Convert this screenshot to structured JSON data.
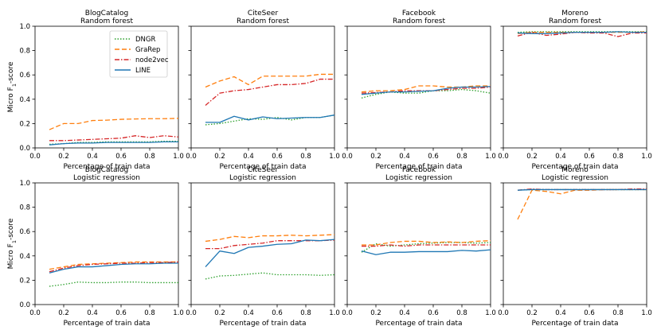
{
  "chart_data": {
    "type": "line",
    "ylabel": "Micro F1-score",
    "xlabel": "Percentage of train data",
    "xlim": [
      0.0,
      1.0
    ],
    "ylim": [
      0.0,
      1.0
    ],
    "xticks": [
      "0.0",
      "0.2",
      "0.4",
      "0.6",
      "0.8",
      "1.0"
    ],
    "yticks": [
      "0.0",
      "0.2",
      "0.4",
      "0.6",
      "0.8",
      "1.0"
    ],
    "x": [
      0.1,
      0.2,
      0.3,
      0.4,
      0.5,
      0.6,
      0.7,
      0.8,
      0.9,
      1.0
    ],
    "series_styles": [
      {
        "name": "DNGR",
        "color": "#2ca02c",
        "dash": "dotted"
      },
      {
        "name": "GraRep",
        "color": "#ff7f0e",
        "dash": "dashed"
      },
      {
        "name": "node2vec",
        "color": "#d62728",
        "dash": "dashdot"
      },
      {
        "name": "LINE",
        "color": "#1f77b4",
        "dash": "solid"
      }
    ],
    "legend": {
      "location": "top-right of first panel",
      "entries": [
        "DNGR",
        "GraRep",
        "node2vec",
        "LINE"
      ]
    },
    "panels": [
      {
        "dataset": "BlogCatalog",
        "classifier": "Random forest",
        "series": {
          "DNGR": [
            0.03,
            0.035,
            0.045,
            0.045,
            0.05,
            0.05,
            0.05,
            0.05,
            0.055,
            0.055
          ],
          "GraRep": [
            0.15,
            0.2,
            0.2,
            0.225,
            0.228,
            0.235,
            0.238,
            0.24,
            0.24,
            0.243
          ],
          "node2vec": [
            0.06,
            0.06,
            0.065,
            0.07,
            0.075,
            0.08,
            0.1,
            0.085,
            0.1,
            0.09
          ],
          "LINE": [
            0.025,
            0.035,
            0.04,
            0.04,
            0.045,
            0.045,
            0.045,
            0.045,
            0.05,
            0.05
          ]
        }
      },
      {
        "dataset": "CiteSeer",
        "classifier": "Random forest",
        "series": {
          "DNGR": [
            0.19,
            0.2,
            0.22,
            0.24,
            0.235,
            0.25,
            0.23,
            0.25,
            0.25,
            0.27
          ],
          "GraRep": [
            0.5,
            0.55,
            0.585,
            0.52,
            0.59,
            0.59,
            0.59,
            0.59,
            0.605,
            0.605
          ],
          "node2vec": [
            0.35,
            0.45,
            0.47,
            0.48,
            0.5,
            0.52,
            0.52,
            0.53,
            0.565,
            0.565
          ],
          "LINE": [
            0.21,
            0.21,
            0.26,
            0.23,
            0.255,
            0.24,
            0.245,
            0.25,
            0.25,
            0.27
          ]
        }
      },
      {
        "dataset": "Facebook",
        "classifier": "Random forest",
        "series": {
          "DNGR": [
            0.41,
            0.44,
            0.46,
            0.45,
            0.45,
            0.47,
            0.47,
            0.48,
            0.47,
            0.45
          ],
          "GraRep": [
            0.46,
            0.47,
            0.47,
            0.48,
            0.51,
            0.51,
            0.5,
            0.5,
            0.51,
            0.51
          ],
          "node2vec": [
            0.45,
            0.455,
            0.46,
            0.47,
            0.47,
            0.47,
            0.48,
            0.49,
            0.49,
            0.5
          ],
          "LINE": [
            0.44,
            0.45,
            0.46,
            0.46,
            0.465,
            0.47,
            0.49,
            0.5,
            0.5,
            0.505
          ]
        }
      },
      {
        "dataset": "Moreno",
        "classifier": "Random forest",
        "series": {
          "DNGR": [
            0.95,
            0.955,
            0.955,
            0.955,
            0.955,
            0.955,
            0.955,
            0.955,
            0.955,
            0.955
          ],
          "GraRep": [
            0.94,
            0.95,
            0.95,
            0.95,
            0.95,
            0.95,
            0.95,
            0.95,
            0.95,
            0.955
          ],
          "node2vec": [
            0.92,
            0.95,
            0.925,
            0.935,
            0.95,
            0.945,
            0.945,
            0.915,
            0.945,
            0.945
          ],
          "LINE": [
            0.945,
            0.94,
            0.94,
            0.945,
            0.95,
            0.95,
            0.95,
            0.955,
            0.95,
            0.95
          ]
        }
      },
      {
        "dataset": "BlogCatalog",
        "classifier": "Logistic regression",
        "series": {
          "DNGR": [
            0.15,
            0.165,
            0.185,
            0.18,
            0.18,
            0.185,
            0.185,
            0.18,
            0.18,
            0.18
          ],
          "GraRep": [
            0.29,
            0.31,
            0.33,
            0.335,
            0.34,
            0.345,
            0.35,
            0.35,
            0.35,
            0.35
          ],
          "node2vec": [
            0.27,
            0.3,
            0.32,
            0.33,
            0.335,
            0.34,
            0.34,
            0.345,
            0.345,
            0.35
          ],
          "LINE": [
            0.26,
            0.29,
            0.31,
            0.31,
            0.32,
            0.33,
            0.335,
            0.335,
            0.34,
            0.34
          ]
        }
      },
      {
        "dataset": "CiteSeer",
        "classifier": "Logistic regression",
        "series": {
          "DNGR": [
            0.21,
            0.235,
            0.24,
            0.25,
            0.26,
            0.245,
            0.245,
            0.245,
            0.24,
            0.245
          ],
          "GraRep": [
            0.52,
            0.535,
            0.56,
            0.55,
            0.565,
            0.565,
            0.57,
            0.565,
            0.57,
            0.575
          ],
          "node2vec": [
            0.46,
            0.46,
            0.485,
            0.495,
            0.505,
            0.525,
            0.525,
            0.525,
            0.525,
            0.53
          ],
          "LINE": [
            0.31,
            0.44,
            0.42,
            0.47,
            0.48,
            0.495,
            0.5,
            0.53,
            0.525,
            0.535
          ]
        }
      },
      {
        "dataset": "Facebook",
        "classifier": "Logistic regression",
        "series": {
          "DNGR": [
            0.43,
            0.5,
            0.48,
            0.49,
            0.5,
            0.505,
            0.51,
            0.51,
            0.505,
            0.51
          ],
          "GraRep": [
            0.49,
            0.49,
            0.51,
            0.52,
            0.52,
            0.51,
            0.515,
            0.51,
            0.52,
            0.525
          ],
          "node2vec": [
            0.48,
            0.48,
            0.49,
            0.48,
            0.49,
            0.49,
            0.49,
            0.49,
            0.49,
            0.49
          ],
          "LINE": [
            0.44,
            0.41,
            0.43,
            0.43,
            0.435,
            0.435,
            0.435,
            0.445,
            0.44,
            0.45
          ]
        }
      },
      {
        "dataset": "Moreno",
        "classifier": "Logistic regression",
        "series": {
          "DNGR": [
            0.94,
            0.945,
            0.945,
            0.945,
            0.945,
            0.945,
            0.945,
            0.945,
            0.945,
            0.945
          ],
          "GraRep": [
            0.7,
            0.94,
            0.93,
            0.91,
            0.94,
            0.94,
            0.945,
            0.945,
            0.945,
            0.945
          ],
          "node2vec": [
            0.94,
            0.95,
            0.945,
            0.945,
            0.945,
            0.945,
            0.945,
            0.945,
            0.95,
            0.95
          ],
          "LINE": [
            0.94,
            0.945,
            0.945,
            0.945,
            0.945,
            0.945,
            0.945,
            0.945,
            0.945,
            0.945
          ]
        }
      }
    ]
  }
}
